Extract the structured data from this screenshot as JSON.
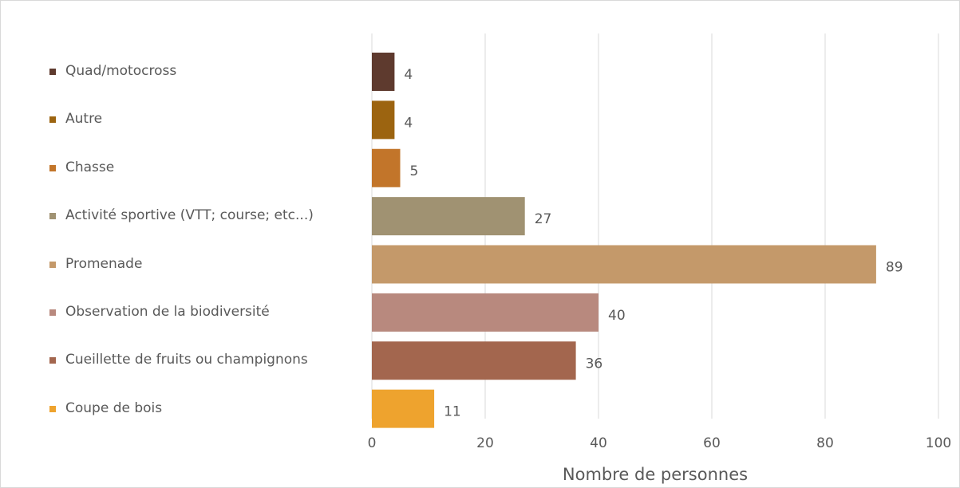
{
  "chart_data": {
    "type": "barh",
    "categories": [
      "Quad/motocross",
      "Autre",
      "Chasse",
      "Activité sportive (VTT; course; etc...)",
      "Promenade",
      "Observation de la biodiversité",
      "Cueillette de fruits ou champignons",
      "Coupe de bois"
    ],
    "values": [
      4,
      4,
      5,
      27,
      89,
      40,
      36,
      11
    ],
    "colors": [
      "#5e3a2e",
      "#9c6410",
      "#c2752a",
      "#a09272",
      "#c4996a",
      "#b8897e",
      "#a3664e",
      "#eea32e"
    ],
    "xlabel": "Nombre de personnes",
    "xlim": [
      0,
      100
    ],
    "xticks": [
      0,
      20,
      40,
      60,
      80,
      100
    ],
    "grid": true
  }
}
